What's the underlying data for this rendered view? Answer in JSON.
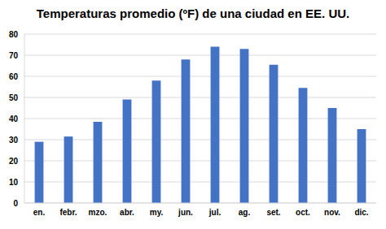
{
  "chart_data": {
    "type": "bar",
    "title": "Temperaturas promedio (ºF) de una ciudad en EE. UU.",
    "categories": [
      "en.",
      "febr.",
      "mzo.",
      "abr.",
      "my.",
      "jun.",
      "jul.",
      "ag.",
      "set.",
      "oct.",
      "nov.",
      "dic."
    ],
    "values": [
      29,
      31.5,
      38.5,
      49,
      58,
      68,
      74,
      73,
      65.5,
      54.5,
      45,
      35
    ],
    "color": "#4472c4",
    "ylim": [
      0,
      80
    ],
    "yticks": [
      0,
      10,
      20,
      30,
      40,
      50,
      60,
      70,
      80
    ],
    "grid": true
  }
}
